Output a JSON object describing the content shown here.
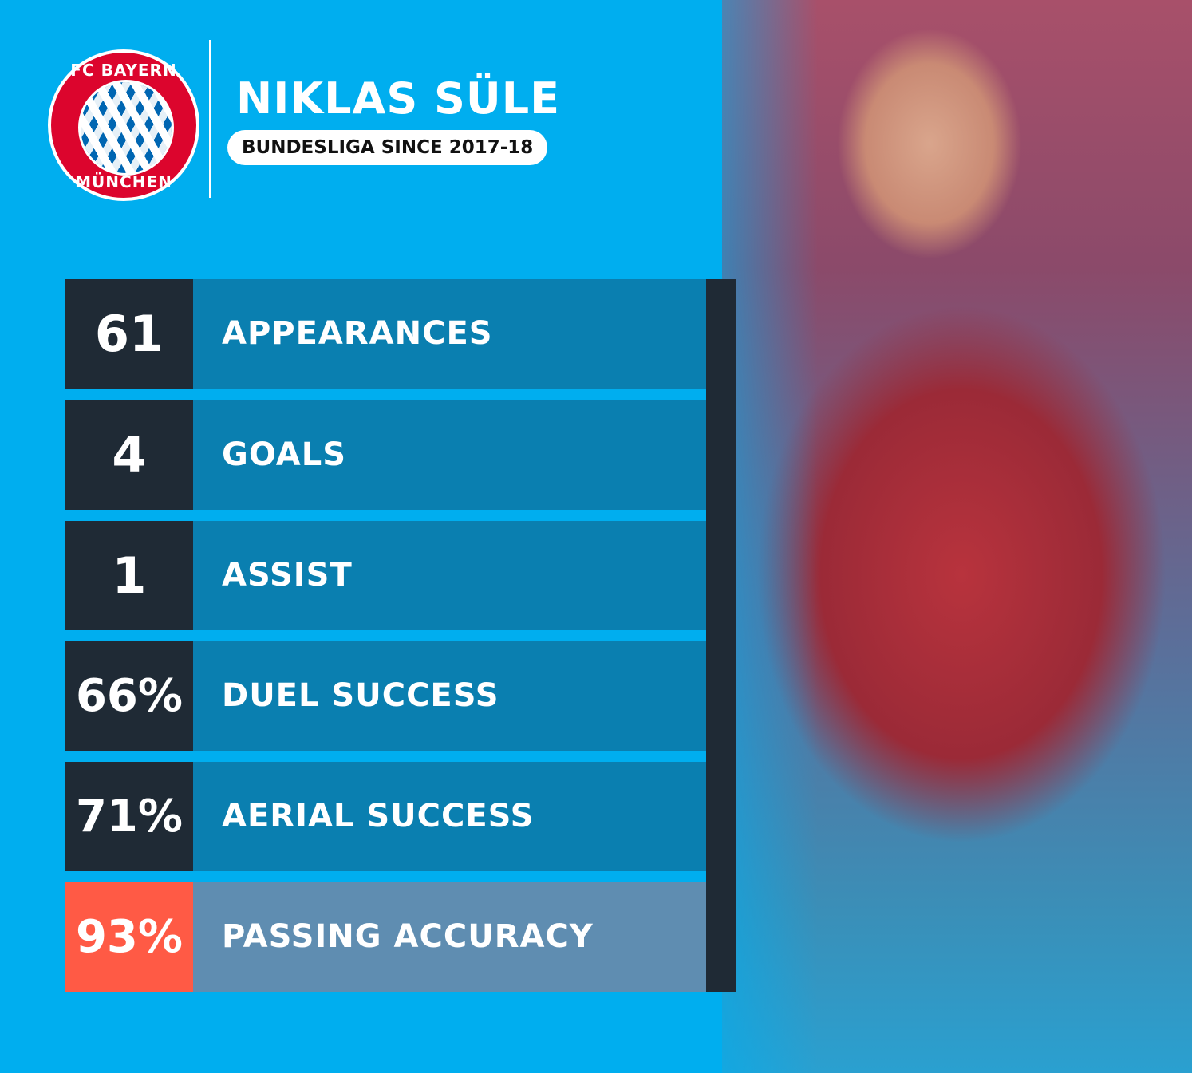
{
  "logo": {
    "top_text": "FC BAYERN",
    "bottom_text": "MÜNCHEN"
  },
  "header": {
    "name": "NIKLAS SÜLE",
    "subtitle": "BUNDESLIGA SINCE 2017-18"
  },
  "stats": [
    {
      "value": "61",
      "label": "APPEARANCES"
    },
    {
      "value": "4",
      "label": "GOALS"
    },
    {
      "value": "1",
      "label": "ASSIST"
    },
    {
      "value": "66%",
      "label": "DUEL SUCCESS"
    },
    {
      "value": "71%",
      "label": "AERIAL SUCCESS"
    },
    {
      "value": "93%",
      "label": "PASSING ACCURACY",
      "highlight": true
    }
  ],
  "colors": {
    "background": "#00aeef",
    "row": "#0a7fb0",
    "number_box": "#1f2a35",
    "highlight_number": "#ff5a45",
    "highlight_row": "#5f8db1"
  }
}
